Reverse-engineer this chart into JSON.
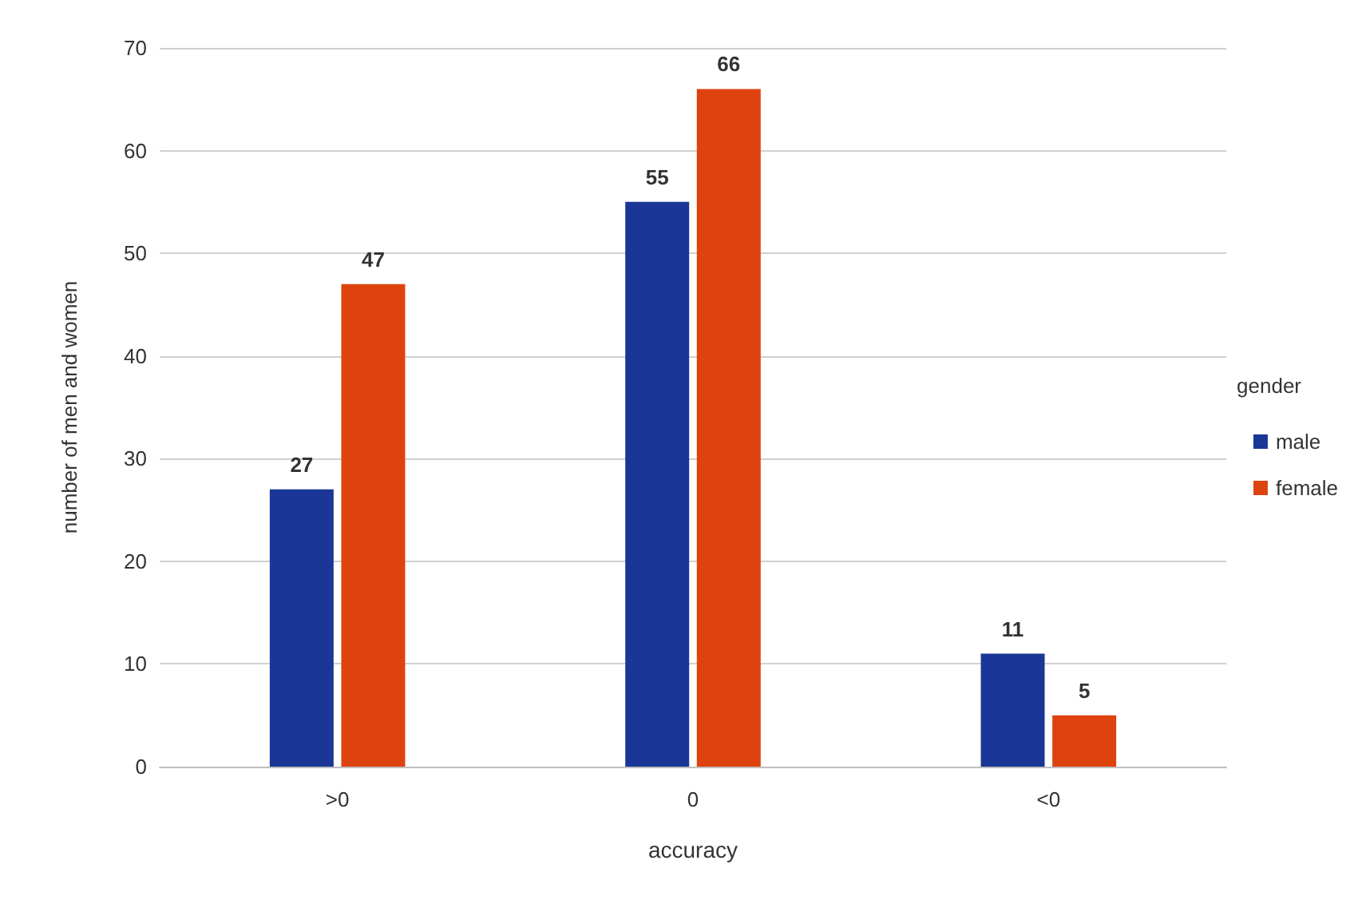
{
  "chart_data": {
    "type": "bar",
    "xlabel": "accuracy",
    "ylabel": "number of men and women",
    "legend_title": "gender",
    "categories": [
      ">0",
      "0",
      "<0"
    ],
    "series": [
      {
        "name": "male",
        "color": "#1a3797",
        "values": [
          27,
          55,
          11
        ]
      },
      {
        "name": "female",
        "color": "#de430f",
        "values": [
          47,
          66,
          5
        ]
      }
    ],
    "ylim": [
      0,
      70
    ],
    "yticks": [
      0,
      10,
      20,
      30,
      40,
      50,
      60,
      70
    ],
    "grid": "y",
    "legend": "right",
    "data_labels": true
  }
}
